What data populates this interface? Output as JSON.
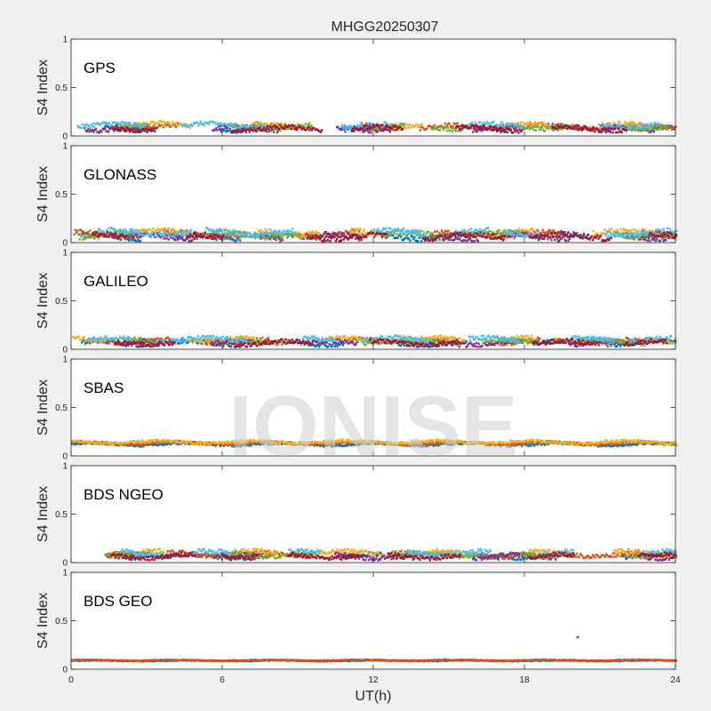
{
  "chart_data": {
    "type": "scatter",
    "title": "MHGG20250307",
    "xlabel": "UT(h)",
    "ylabel": "S4 Index",
    "xlim": [
      0,
      24
    ],
    "xticks": [
      "0",
      "6",
      "12",
      "18",
      "24"
    ],
    "ylim": [
      0,
      1
    ],
    "yticks": [
      "0",
      "0.5",
      "1"
    ],
    "watermark": "IONISE",
    "panels": [
      {
        "label": "GPS",
        "baseline": 0.09,
        "amplitude": 0.05,
        "series_count": 7,
        "colors": [
          "#0072BD",
          "#D95319",
          "#EDB120",
          "#7E2F8E",
          "#77AC30",
          "#4DBEEE",
          "#A2142F"
        ]
      },
      {
        "label": "GLONASS",
        "baseline": 0.08,
        "amplitude": 0.06,
        "series_count": 7,
        "colors": [
          "#0072BD",
          "#D95319",
          "#EDB120",
          "#7E2F8E",
          "#77AC30",
          "#4DBEEE",
          "#A2142F"
        ]
      },
      {
        "label": "GALILEO",
        "baseline": 0.08,
        "amplitude": 0.05,
        "series_count": 7,
        "colors": [
          "#0072BD",
          "#D95319",
          "#EDB120",
          "#7E2F8E",
          "#77AC30",
          "#4DBEEE",
          "#A2142F"
        ]
      },
      {
        "label": "SBAS",
        "baseline": 0.13,
        "amplitude": 0.03,
        "series_count": 3,
        "colors": [
          "#0072BD",
          "#D95319",
          "#EDB120"
        ]
      },
      {
        "label": "BDS NGEO",
        "baseline": 0.08,
        "amplitude": 0.05,
        "series_count": 7,
        "colors": [
          "#0072BD",
          "#D95319",
          "#EDB120",
          "#7E2F8E",
          "#77AC30",
          "#4DBEEE",
          "#A2142F"
        ]
      },
      {
        "label": "BDS GEO",
        "baseline": 0.09,
        "amplitude": 0.01,
        "series_count": 2,
        "colors": [
          "#0072BD",
          "#D95319"
        ],
        "outlier": {
          "x": 20.1,
          "y": 0.33
        }
      }
    ]
  }
}
